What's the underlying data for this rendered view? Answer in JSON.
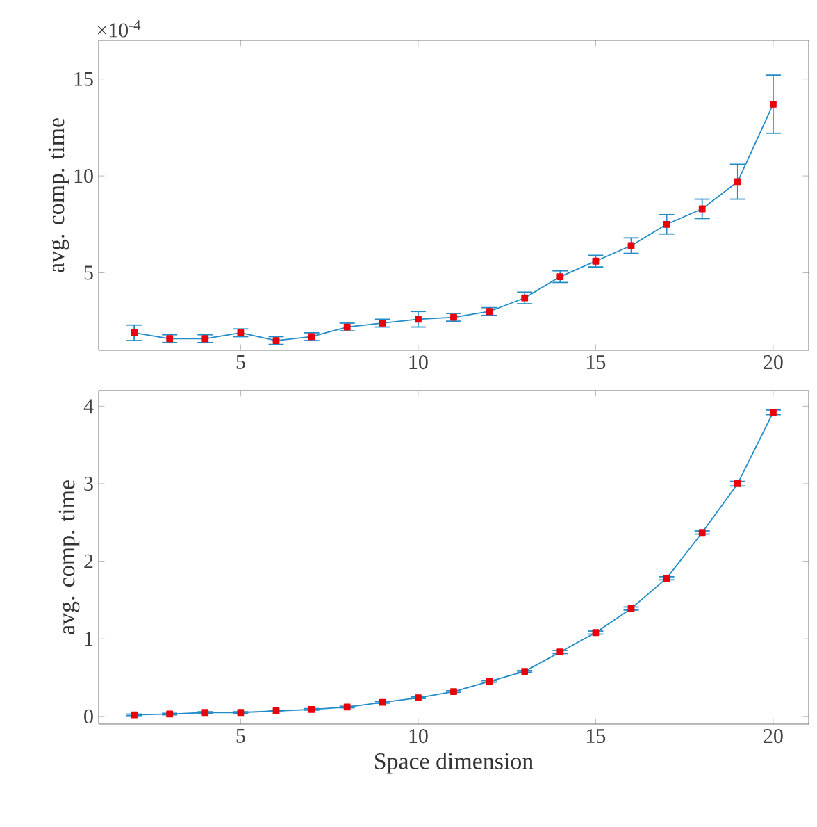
{
  "chart_data": [
    {
      "type": "line",
      "ylabel": "avg. comp. time",
      "annotations": [
        "×10$^{-4}$"
      ],
      "x": [
        2,
        3,
        4,
        5,
        6,
        7,
        8,
        9,
        10,
        11,
        12,
        13,
        14,
        15,
        16,
        17,
        18,
        19,
        20
      ],
      "series": [
        {
          "color": "#e8000b",
          "values": [
            1.9,
            1.6,
            1.6,
            1.9,
            1.5,
            1.7,
            2.2,
            2.4,
            2.6,
            2.7,
            3.0,
            3.7,
            4.8,
            5.6,
            6.4,
            7.5,
            8.3,
            9.7,
            13.7
          ],
          "errors": [
            0.4,
            0.2,
            0.2,
            0.2,
            0.2,
            0.2,
            0.2,
            0.2,
            0.4,
            0.2,
            0.2,
            0.3,
            0.3,
            0.3,
            0.4,
            0.5,
            0.5,
            0.9,
            1.5
          ]
        }
      ],
      "xlim": [
        1,
        21
      ],
      "ylim": [
        1,
        17
      ],
      "xticks": [
        5,
        10,
        15,
        20
      ],
      "yticks": [
        5,
        10,
        15
      ],
      "marker": "square"
    },
    {
      "type": "line",
      "ylabel": "avg. comp. time",
      "xlabel": "Space dimension",
      "x": [
        2,
        3,
        4,
        5,
        6,
        7,
        8,
        9,
        10,
        11,
        12,
        13,
        14,
        15,
        16,
        17,
        18,
        19,
        20
      ],
      "series": [
        {
          "color": "#e8000b",
          "values": [
            0.02,
            0.03,
            0.05,
            0.05,
            0.07,
            0.09,
            0.12,
            0.18,
            0.24,
            0.32,
            0.45,
            0.58,
            0.83,
            1.08,
            1.39,
            1.78,
            2.37,
            3.0,
            3.92
          ],
          "errors": [
            0.01,
            0.01,
            0.01,
            0.01,
            0.01,
            0.01,
            0.01,
            0.01,
            0.01,
            0.01,
            0.01,
            0.01,
            0.02,
            0.02,
            0.02,
            0.02,
            0.02,
            0.03,
            0.03
          ]
        }
      ],
      "xlim": [
        1,
        21
      ],
      "ylim": [
        -0.1,
        4.2
      ],
      "xticks": [
        5,
        10,
        15,
        20
      ],
      "yticks": [
        0,
        1,
        2,
        3,
        4
      ],
      "marker": "square"
    }
  ]
}
